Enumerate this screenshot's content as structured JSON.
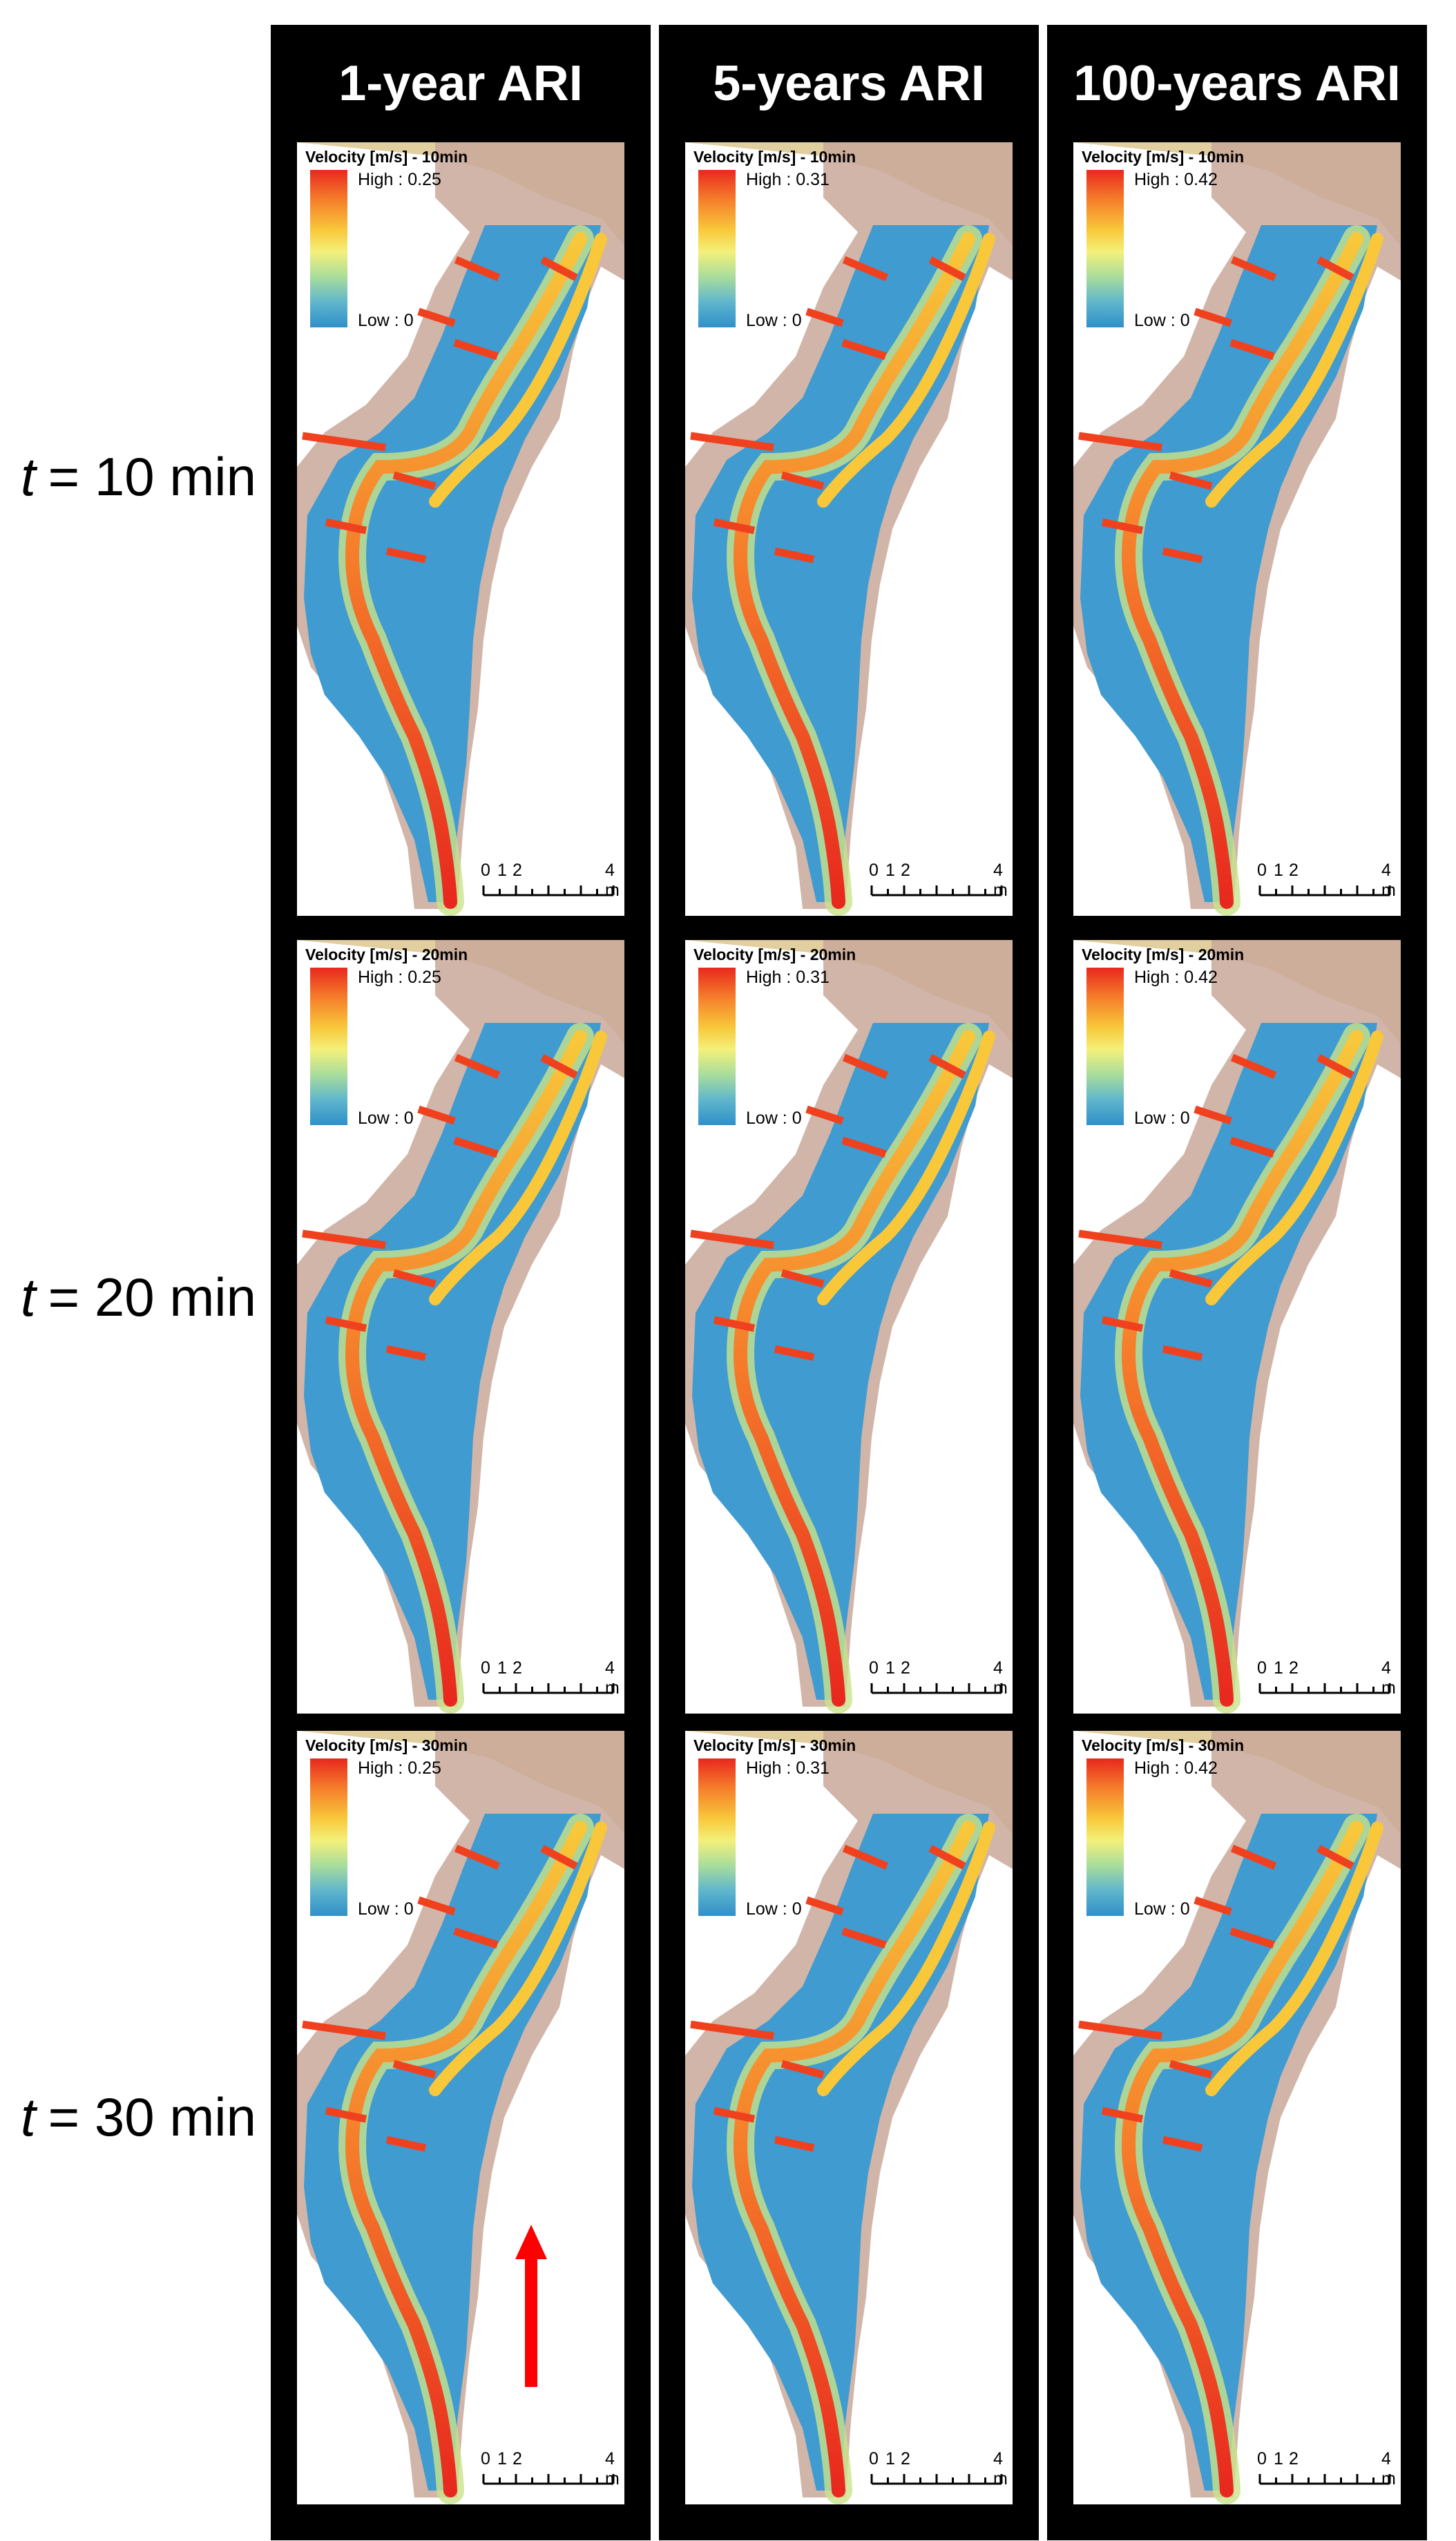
{
  "columns": [
    {
      "title": "1-year ARI",
      "high_label": "High : 0.25",
      "low_label": "Low : 0"
    },
    {
      "title": "5-years ARI",
      "high_label": "High : 0.31",
      "low_label": "Low : 0"
    },
    {
      "title": "100-years ARI",
      "high_label": "High : 0.42",
      "low_label": "Low : 0"
    }
  ],
  "rows": [
    {
      "t_var": "t",
      "t_rest": "= 10 min",
      "panel_title": "Velocity [m/s] - 10min"
    },
    {
      "t_var": "t",
      "t_rest": "= 20 min",
      "panel_title": "Velocity [m/s] - 20min"
    },
    {
      "t_var": "t",
      "t_rest": "= 30 min",
      "panel_title": "Velocity [m/s] - 30min"
    }
  ],
  "scale": {
    "labels": [
      "0",
      "1",
      "2",
      "4 m"
    ]
  },
  "colors": {
    "frame": "#000000",
    "bank": "#e2cfa0",
    "banks_side": "#c9a89a",
    "low_velocity": "#3f9bd0",
    "high_velocity": "#e8281e",
    "cross_section": "#f0411f",
    "flow_arrow": "#ff0000"
  },
  "icons": {
    "flow_direction": "up-arrow-icon"
  }
}
